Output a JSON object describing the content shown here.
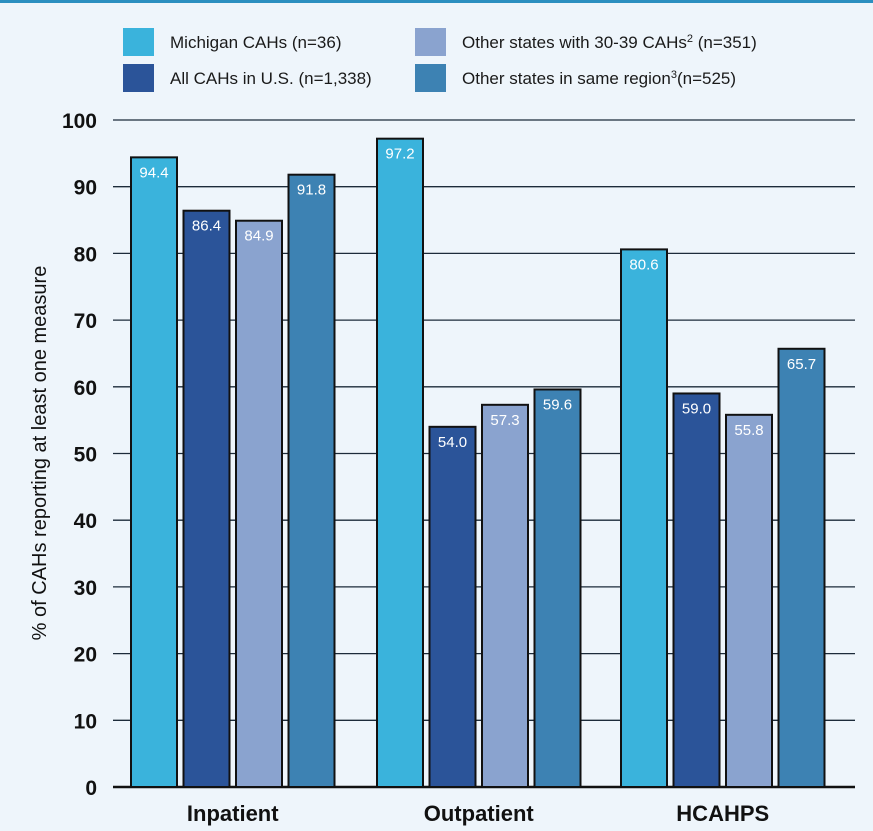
{
  "chart_data": {
    "type": "bar",
    "categories": [
      "Inpatient",
      "Outpatient",
      "HCAHPS"
    ],
    "series": [
      {
        "name": "Michigan CAHs (n=36)",
        "sup": "",
        "suffix": "",
        "color": "#3ab3dc",
        "values": [
          94.4,
          97.2,
          80.6
        ]
      },
      {
        "name": "All CAHs in U.S. (n=1,338)",
        "sup": "",
        "suffix": "",
        "color": "#2b5499",
        "values": [
          86.4,
          54.0,
          59.0
        ]
      },
      {
        "name": "Other states with 30-39 CAHs",
        "sup": "2",
        "suffix": " (n=351)",
        "color": "#8aa3cf",
        "values": [
          84.9,
          57.3,
          55.8
        ]
      },
      {
        "name": "Other states in same region",
        "sup": "3",
        "suffix": "(n=525)",
        "color": "#3d82b3",
        "values": [
          91.8,
          59.6,
          65.7
        ]
      }
    ],
    "ylabel": "% of CAHs reporting at least one measure",
    "xlabel": "",
    "ylim": [
      0,
      100
    ],
    "yticks": [
      0,
      10,
      20,
      30,
      40,
      50,
      60,
      70,
      80,
      90,
      100
    ],
    "grid": true,
    "legend": "top"
  }
}
